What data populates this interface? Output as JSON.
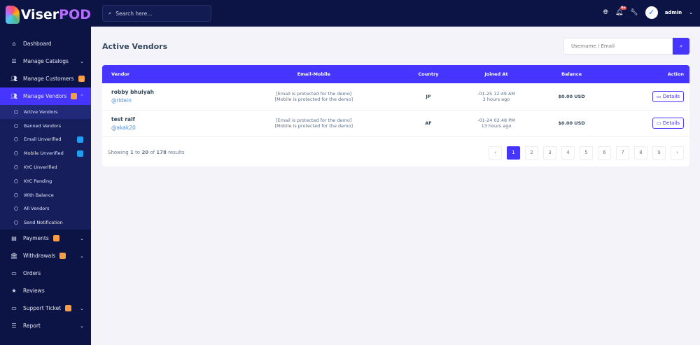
{
  "brand": {
    "part1": "Viser",
    "part2": "POD"
  },
  "search": {
    "placeholder": "Search here..."
  },
  "header": {
    "user": "admin",
    "notification_count": "9+"
  },
  "sidebar": {
    "items_top": [
      {
        "label": "Dashboard",
        "icon": "home-icon"
      },
      {
        "label": "Manage Catalogs",
        "icon": "list-icon",
        "chevron": true
      },
      {
        "label": "Manage Customers",
        "icon": "users-icon",
        "chevron": true,
        "badge": true
      }
    ],
    "vendors": {
      "label": "Manage Vendors",
      "icon": "users-icon",
      "sub": [
        "Active Vendors",
        "Banned Vendors",
        "Email Unverified",
        "Mobile Unverified",
        "KYC Unverified",
        "KYC Pending",
        "With Balance",
        "All Vendors",
        "Send Notification"
      ]
    },
    "items_bottom": [
      {
        "label": "Payments",
        "icon": "payment-icon",
        "chevron": true,
        "badge": true
      },
      {
        "label": "Withdrawals",
        "icon": "bank-icon",
        "chevron": true,
        "badge": true
      },
      {
        "label": "Orders",
        "icon": "orders-icon"
      },
      {
        "label": "Reviews",
        "icon": "star-icon"
      },
      {
        "label": "Support Ticket",
        "icon": "ticket-icon",
        "chevron": true,
        "badge": true
      },
      {
        "label": "Report",
        "icon": "list-icon",
        "chevron": true
      }
    ]
  },
  "page": {
    "title": "Active Vendors",
    "search_placeholder": "Username / Email"
  },
  "table": {
    "headers": [
      "Vendor",
      "Email-Mobile",
      "Country",
      "Joined At",
      "Balance",
      "Action"
    ],
    "rows": [
      {
        "name": "robby bhuiyah",
        "username": "@ridein",
        "email": "[Email is protected for the demo]",
        "mobile": "[Mobile is protected for the demo]",
        "country": "JP",
        "joined": "-01-25 12:49 AM",
        "ago": "3 hours ago",
        "balance": "$0.00 USD",
        "action": "Details"
      },
      {
        "name": "test ralf",
        "username": "@akak20",
        "email": "[Email is protected for the demo]",
        "mobile": "[Mobile is protected for the demo]",
        "country": "AF",
        "joined": "-01-24 02:48 PM",
        "ago": "13 hours ago",
        "balance": "$0.00 USD",
        "action": "Details"
      }
    ]
  },
  "pagination": {
    "showing_prefix": "Showing",
    "from": "1",
    "to_word": "to",
    "to": "20",
    "of_word": "of",
    "total": "178",
    "suffix": "results",
    "pages": [
      "‹",
      "1",
      "2",
      "3",
      "4",
      "5",
      "6",
      "7",
      "8",
      "9",
      "›"
    ],
    "current": "1"
  },
  "colors": {
    "accent": "#4634ff",
    "sidebar": "#0c1445",
    "badge": "#f79e45"
  }
}
